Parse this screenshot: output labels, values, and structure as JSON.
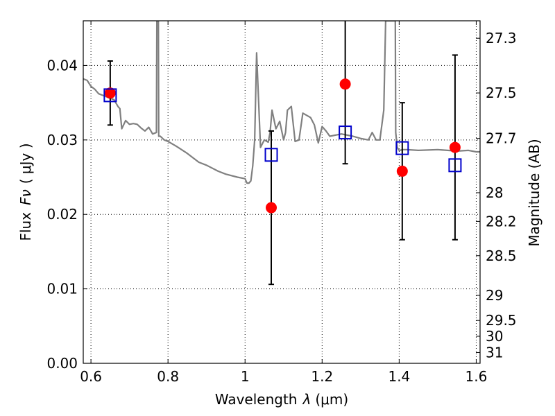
{
  "chart_data": {
    "type": "line",
    "xlabel": "Wavelength",
    "xlabel_symbol": "λ",
    "xlabel_unit": "(μm)",
    "ylabel": "Flux",
    "ylabel_symbol": "Fν",
    "ylabel_unit": "( μJy )",
    "y2label": "Magnitude (AB)",
    "xlim": [
      0.58,
      1.61
    ],
    "ylim": [
      0.0,
      0.046
    ],
    "grid": true,
    "x_ticks": [
      0.6,
      0.8,
      1.0,
      1.2,
      1.4,
      1.6
    ],
    "x_tick_labels": [
      "0.6",
      "0.8",
      "1",
      "1.2",
      "1.4",
      "1.6"
    ],
    "y_ticks": [
      0.0,
      0.01,
      0.02,
      0.03,
      0.04
    ],
    "y_tick_labels": [
      "0.00",
      "0.01",
      "0.02",
      "0.03",
      "0.04"
    ],
    "y2_ticks": [
      27.3,
      27.5,
      27.7,
      28,
      28.2,
      28.5,
      29,
      29.5,
      30,
      31
    ],
    "y2_tick_labels": [
      "27.3",
      "27.5",
      "27.7",
      "28",
      "28.2",
      "28.5",
      "29",
      "29.5",
      "30",
      "31"
    ],
    "series": [
      {
        "kind": "line",
        "color": "#808080",
        "x": [
          0.58,
          0.59,
          0.6,
          0.61,
          0.62,
          0.63,
          0.64,
          0.65,
          0.66,
          0.67,
          0.675,
          0.68,
          0.69,
          0.7,
          0.71,
          0.72,
          0.73,
          0.74,
          0.75,
          0.76,
          0.77,
          0.771,
          0.775,
          0.776,
          0.78,
          0.79,
          0.8,
          0.82,
          0.85,
          0.88,
          0.9,
          0.93,
          0.95,
          0.98,
          1.0,
          1.005,
          1.01,
          1.015,
          1.02,
          1.025,
          1.03,
          1.04,
          1.05,
          1.06,
          1.065,
          1.07,
          1.08,
          1.09,
          1.1,
          1.105,
          1.11,
          1.12,
          1.13,
          1.14,
          1.15,
          1.17,
          1.18,
          1.19,
          1.2,
          1.21,
          1.22,
          1.25,
          1.28,
          1.3,
          1.32,
          1.33,
          1.34,
          1.35,
          1.36,
          1.365,
          1.366,
          1.39,
          1.391,
          1.395,
          1.4,
          1.41,
          1.42,
          1.45,
          1.5,
          1.55,
          1.58,
          1.6,
          1.61
        ],
        "values": [
          0.0382,
          0.038,
          0.0372,
          0.0368,
          0.0362,
          0.036,
          0.0358,
          0.0356,
          0.0354,
          0.0345,
          0.0342,
          0.0315,
          0.0326,
          0.0321,
          0.0322,
          0.0321,
          0.0316,
          0.0312,
          0.0317,
          0.0308,
          0.031,
          0.046,
          0.046,
          0.0305,
          0.0305,
          0.03,
          0.0298,
          0.0292,
          0.0282,
          0.027,
          0.0266,
          0.0258,
          0.0254,
          0.025,
          0.0248,
          0.0242,
          0.0242,
          0.0245,
          0.0265,
          0.03,
          0.0417,
          0.029,
          0.03,
          0.0297,
          0.031,
          0.034,
          0.0315,
          0.0325,
          0.03,
          0.031,
          0.034,
          0.0345,
          0.0298,
          0.03,
          0.0336,
          0.033,
          0.032,
          0.0296,
          0.0318,
          0.0312,
          0.0305,
          0.0308,
          0.0305,
          0.0302,
          0.03,
          0.031,
          0.03,
          0.03,
          0.034,
          0.046,
          0.046,
          0.046,
          0.031,
          0.029,
          0.0286,
          0.0287,
          0.0287,
          0.0286,
          0.0287,
          0.0285,
          0.0286,
          0.0284,
          0.0284
        ]
      },
      {
        "kind": "scatter",
        "marker": "circle",
        "color": "#ff0000",
        "x": [
          0.65,
          1.068,
          1.26,
          1.408,
          1.545
        ],
        "values": [
          0.0363,
          0.0209,
          0.0375,
          0.0258,
          0.029
        ],
        "err": [
          [
            0.0043,
            0.0043
          ],
          [
            0.0103,
            0.0103
          ],
          [
            0.0107,
            0.0107
          ],
          [
            0.0092,
            0.0092
          ],
          [
            0.0124,
            0.0124
          ]
        ]
      },
      {
        "kind": "scatter",
        "marker": "square-open",
        "color": "#0000cc",
        "x": [
          0.65,
          1.068,
          1.26,
          1.408,
          1.545
        ],
        "values": [
          0.036,
          0.028,
          0.031,
          0.0289,
          0.0266
        ]
      }
    ]
  }
}
